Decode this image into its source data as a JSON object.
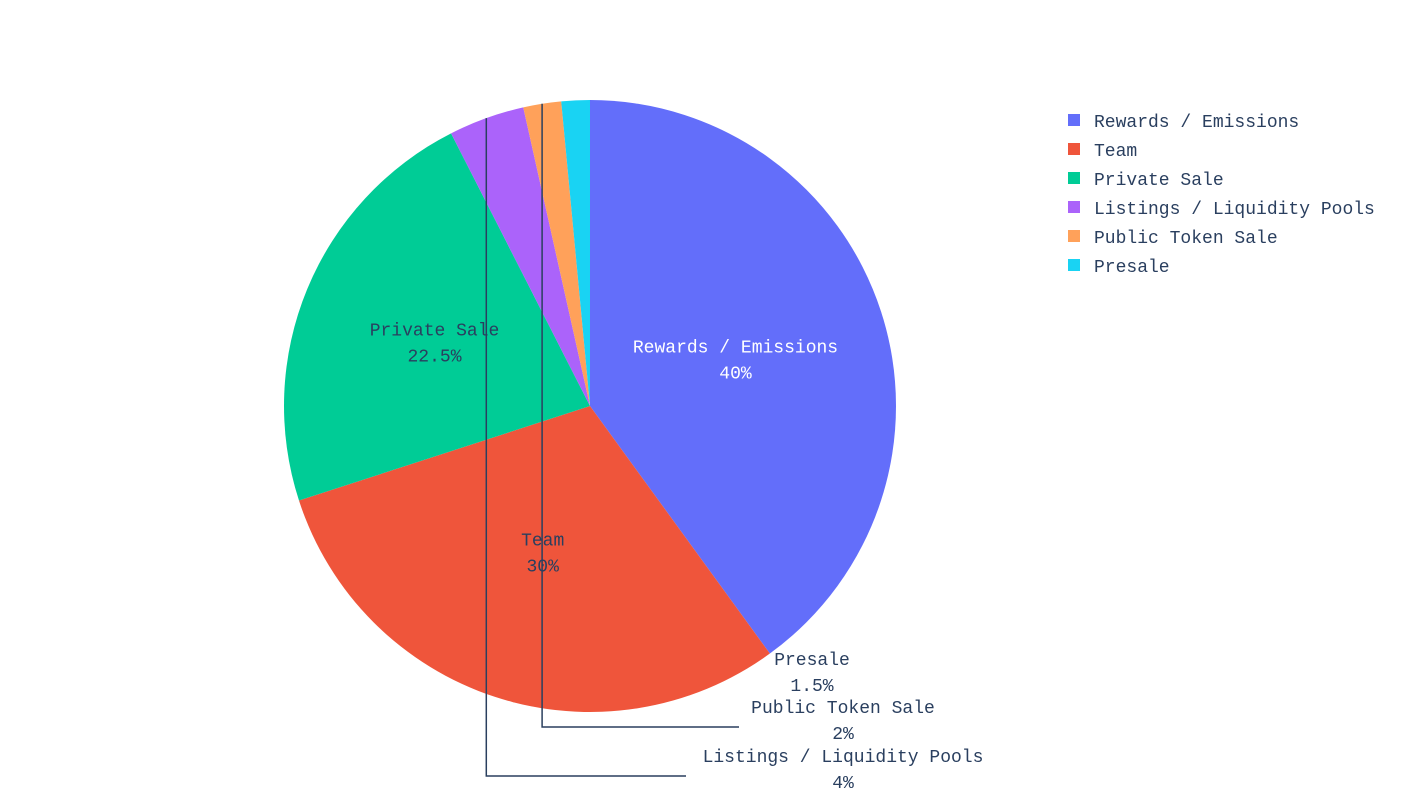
{
  "chart_data": {
    "type": "pie",
    "labels": [
      "Rewards / Emissions",
      "Team",
      "Private Sale",
      "Listings / Liquidity Pools",
      "Public Token Sale",
      "Presale"
    ],
    "values": [
      40,
      30,
      22.5,
      4,
      2,
      1.5
    ],
    "percent_labels": [
      "40%",
      "30%",
      "22.5%",
      "4%",
      "2%",
      "1.5%"
    ],
    "colors": [
      "#636efa",
      "#ef553b",
      "#00cc96",
      "#ab63fa",
      "#ffa15a",
      "#19d3f3"
    ],
    "direction": "clockwise",
    "start_angle": "top",
    "legend": {
      "placement": "top-right",
      "entries": [
        "Rewards / Emissions",
        "Team",
        "Private Sale",
        "Listings / Liquidity Pools",
        "Public Token Sale",
        "Presale"
      ]
    },
    "text_colors": {
      "inside_dark_bg": "#ffffff",
      "inside_light_bg": "#2a3f5f",
      "outside": "#2a3f5f",
      "leader_line": "#2a3f5f"
    }
  }
}
